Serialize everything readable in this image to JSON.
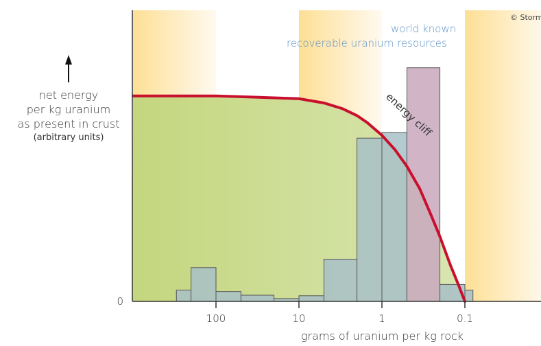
{
  "chart_data": {
    "type": "bar",
    "title": "",
    "xlabel": "grams of uranium per kg rock",
    "ylabel_lines": [
      "net energy",
      "per kg uranium",
      "as present in crust"
    ],
    "ylabel_note": "(arbitrary units)",
    "x_scale": "log",
    "x_direction": "decreasing",
    "x_tick_labels": [
      "100",
      "10",
      "1",
      "0.1"
    ],
    "y_tick_labels": [
      "0"
    ],
    "bars": [
      {
        "from": 300,
        "to": 200,
        "value": 4
      },
      {
        "from": 200,
        "to": 100,
        "value": 12
      },
      {
        "from": 100,
        "to": 50,
        "value": 3.5
      },
      {
        "from": 50,
        "to": 20,
        "value": 2.2
      },
      {
        "from": 20,
        "to": 10,
        "value": 1
      },
      {
        "from": 10,
        "to": 5,
        "value": 2
      },
      {
        "from": 5,
        "to": 2,
        "value": 15
      },
      {
        "from": 2,
        "to": 1,
        "value": 58
      },
      {
        "from": 1,
        "to": 0.5,
        "value": 60
      },
      {
        "from": 0.5,
        "to": 0.2,
        "value": 83
      },
      {
        "from": 0.2,
        "to": 0.1,
        "value": 6
      },
      {
        "from": 0.1,
        "to": 0.08,
        "value": 4
      }
    ],
    "energy_curve": {
      "label": "energy cliff",
      "x": [
        1000,
        100,
        30,
        10,
        5,
        3,
        2,
        1.5,
        1,
        0.7,
        0.5,
        0.35,
        0.25,
        0.2,
        0.15,
        0.12,
        0.1
      ],
      "y": [
        73,
        73,
        72.5,
        72,
        70.5,
        68.5,
        66,
        63.5,
        59,
        54,
        48,
        40,
        30,
        23,
        13,
        6,
        0
      ]
    },
    "annotation_lines": [
      "world known",
      "recoverable uranium resources"
    ],
    "copyright": "© Storm",
    "colors": {
      "bar_fill": "#a8bfc8",
      "bar_top_fill": "#c9a8bd",
      "bar_stroke": "#555555",
      "curve": "#c8102e",
      "green_area": "#c6d88a",
      "band_yellow": "#fde3a0",
      "annotation_text": "#5a8fc7"
    }
  }
}
